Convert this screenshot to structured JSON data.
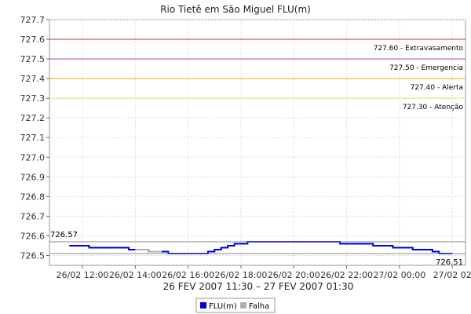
{
  "chart_data": {
    "type": "line",
    "title": "Rio Tietê em São Miguel FLU(m)",
    "xlabel": "26 FEV 2007 11:30 – 27 FEV 2007 01:30",
    "ylabel": "",
    "ylim": [
      726.45,
      727.7
    ],
    "y_ticks": [
      "726.5",
      "726.6",
      "726.7",
      "726.8",
      "726.9",
      "727.0",
      "727.1",
      "727.2",
      "727.3",
      "727.4",
      "727.5",
      "727.6",
      "727.7"
    ],
    "x_tick_labels": [
      "26/02 12:00",
      "26/02 14:00",
      "26/02 16:00",
      "26/02 18:00",
      "26/02 20:00",
      "26/02 22:00",
      "27/02 00:00",
      "27/02 02"
    ],
    "x_range_hours": [
      10.75,
      26.5
    ],
    "x_tick_hours": [
      12,
      14,
      16,
      18,
      20,
      22,
      24,
      26
    ],
    "grid": true,
    "thresholds": [
      {
        "value": 727.6,
        "label": "727.60 - Extravasamento",
        "color": "#cc3333"
      },
      {
        "value": 727.5,
        "label": "727.50 - Emergencia",
        "color": "#b040b0"
      },
      {
        "value": 727.4,
        "label": "727.40 - Alerta",
        "color": "#e8b400"
      },
      {
        "value": 727.3,
        "label": "727.30 - Atenção",
        "color": "#e8e070"
      }
    ],
    "series": [
      {
        "name": "FLU(m)",
        "color": "#0000dd",
        "points": [
          [
            11.5,
            726.55
          ],
          [
            12.0,
            726.55
          ],
          [
            12.25,
            726.54
          ],
          [
            13.0,
            726.54
          ],
          [
            13.5,
            726.54
          ],
          [
            13.75,
            726.53
          ],
          [
            14.0,
            726.53
          ],
          [
            14.5,
            726.52
          ],
          [
            15.0,
            726.52
          ],
          [
            15.25,
            726.51
          ],
          [
            16.0,
            726.51
          ],
          [
            16.5,
            726.51
          ],
          [
            16.75,
            726.52
          ],
          [
            17.0,
            726.53
          ],
          [
            17.25,
            726.54
          ],
          [
            17.5,
            726.55
          ],
          [
            17.75,
            726.56
          ],
          [
            18.0,
            726.56
          ],
          [
            18.25,
            726.57
          ],
          [
            19.0,
            726.57
          ],
          [
            20.0,
            726.57
          ],
          [
            21.0,
            726.57
          ],
          [
            21.5,
            726.57
          ],
          [
            21.75,
            726.56
          ],
          [
            22.5,
            726.56
          ],
          [
            23.0,
            726.55
          ],
          [
            23.5,
            726.55
          ],
          [
            23.75,
            726.54
          ],
          [
            24.25,
            726.54
          ],
          [
            24.5,
            726.53
          ],
          [
            25.0,
            726.53
          ],
          [
            25.25,
            726.52
          ],
          [
            25.5,
            726.51
          ],
          [
            26.0,
            726.51
          ]
        ]
      },
      {
        "name": "Falha",
        "color": "#b0b0b0",
        "points": [
          [
            14.0,
            726.53
          ],
          [
            14.5,
            726.52
          ],
          [
            15.0,
            726.52
          ]
        ]
      }
    ],
    "annotations": {
      "max_label": "726.57",
      "max_value": 726.57,
      "last_label": "726.51",
      "last_value": 726.51
    },
    "legend_position": "bottom"
  }
}
